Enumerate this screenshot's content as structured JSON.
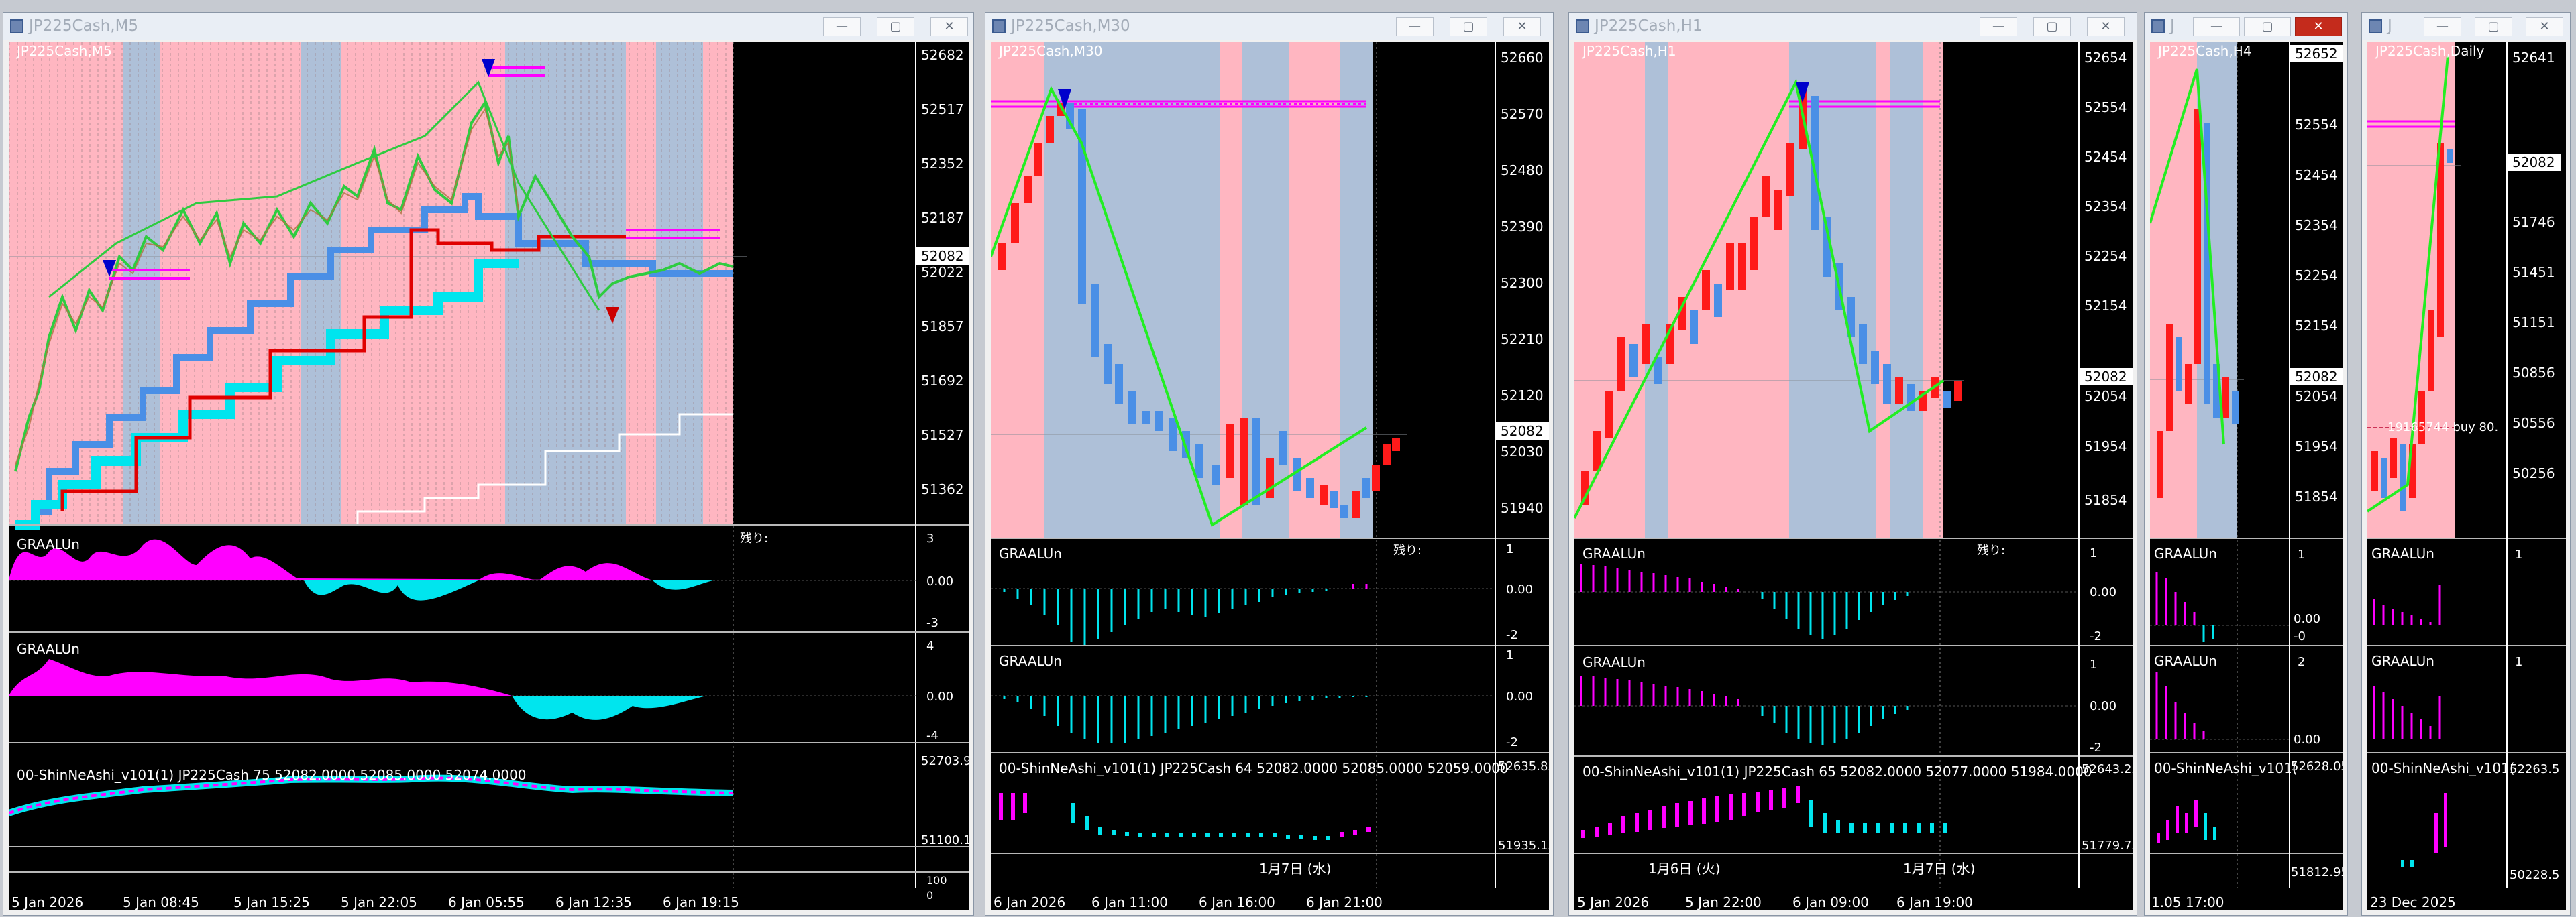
{
  "colors": {
    "bull": "#ff1a1a",
    "bear": "#4a8fe6",
    "pink": "#ffb6c1",
    "blue": "#aec0d8",
    "magenta": "#ff00ff",
    "cyan": "#00e5ee",
    "zigzag": "#22ee22"
  },
  "icons": {
    "window": "chart-window-icon",
    "min": "minimize-icon",
    "max": "maximize-icon",
    "close": "close-icon"
  },
  "windows": [
    {
      "title": "JP225Cash,M5",
      "label": "JP225Cash,M5",
      "price_ticks": [
        "52682",
        "52517",
        "52352",
        "52187",
        "52022",
        "51857",
        "51692",
        "51527",
        "51362"
      ],
      "current_price": "52082",
      "zan": "残り:",
      "ind1": {
        "name": "GRAALUn",
        "ticks": [
          "3",
          "0.00",
          "-3"
        ]
      },
      "ind2": {
        "name": "GRAALUn",
        "ticks": [
          "4",
          "0.00",
          "-4"
        ]
      },
      "ind3": {
        "name": "00-ShinNeAshi_v101(1) JP225Cash 75 52082.0000 52085.0000 52074.0000",
        "ticks": [
          "52703.9",
          "51100.1"
        ]
      },
      "extra_ticks": [
        "100",
        "0"
      ],
      "time_labels": [
        "5 Jan 2026",
        "5 Jan 08:45",
        "5 Jan 15:25",
        "5 Jan 22:05",
        "6 Jan 05:55",
        "6 Jan 12:35",
        "6 Jan 19:15"
      ]
    },
    {
      "title": "JP225Cash,M30",
      "label": "JP225Cash,M30",
      "price_ticks": [
        "52660",
        "52570",
        "52480",
        "52390",
        "52300",
        "52210",
        "52120",
        "52030",
        "51940"
      ],
      "current_price": "52082",
      "zan": "残り:",
      "ind1": {
        "name": "GRAALUn",
        "ticks": [
          "1",
          "0.00",
          "-2"
        ]
      },
      "ind2": {
        "name": "GRAALUn",
        "ticks": [
          "1",
          "0.00",
          "-2"
        ]
      },
      "ind3": {
        "name": "00-ShinNeAshi_v101(1) JP225Cash 64 52082.0000 52085.0000 52059.0000",
        "ticks": [
          "52635.85",
          "51935.15"
        ]
      },
      "date_mark": "1月7日 (水)",
      "time_labels": [
        "6 Jan 2026",
        "6 Jan 11:00",
        "6 Jan 16:00",
        "6 Jan 21:00"
      ]
    },
    {
      "title": "JP225Cash,H1",
      "label": "JP225Cash,H1",
      "price_ticks": [
        "52654",
        "52554",
        "52454",
        "52354",
        "52254",
        "52154",
        "52054",
        "51954",
        "51854"
      ],
      "current_price": "52082",
      "zan": "残り:",
      "ind1": {
        "name": "GRAALUn",
        "ticks": [
          "1",
          "0.00",
          "-2"
        ]
      },
      "ind2": {
        "name": "GRAALUn",
        "ticks": [
          "1",
          "0.00",
          "-2"
        ]
      },
      "ind3": {
        "name": "00-ShinNeAshi_v101(1) JP225Cash 65 52082.0000 52077.0000 51984.0000",
        "ticks": [
          "52643.25",
          "51779.75"
        ]
      },
      "date_mark1": "1月6日 (火)",
      "date_mark2": "1月7日 (水)",
      "time_labels": [
        "5 Jan 2026",
        "5 Jan 22:00",
        "6 Jan 09:00",
        "6 Jan 19:00"
      ]
    },
    {
      "title": "J",
      "label": "JP225Cash,H4",
      "price_ticks": [
        "52652",
        "52554",
        "52454",
        "52354",
        "52254",
        "52154",
        "52054",
        "51954",
        "51854"
      ],
      "current_price": "52082",
      "ind1": {
        "name": "GRAALUn",
        "ticks": [
          "1",
          "0.00",
          "-0"
        ]
      },
      "ind2": {
        "name": "GRAALUn",
        "ticks": [
          "2",
          "0.00"
        ]
      },
      "ind3": {
        "name": "00-ShinNeAshi_v101(",
        "ticks": [
          "52628.05",
          "51812.95"
        ]
      },
      "time_labels": [
        "1.05 17:00"
      ]
    },
    {
      "title": "J",
      "label": "JP225Cash,Daily",
      "price_ticks": [
        "52641",
        "52082",
        "51746",
        "51451",
        "51151",
        "50856",
        "50556",
        "50256"
      ],
      "current_price": "52082",
      "order_label": "19165744 buy 80.",
      "ind1": {
        "name": "GRAALUn",
        "ticks": [
          "1"
        ]
      },
      "ind2": {
        "name": "GRAALUn",
        "ticks": [
          "1"
        ]
      },
      "ind3": {
        "name": "00-ShinNeAshi_v101(",
        "ticks": [
          "52263.5",
          "50228.5"
        ]
      },
      "time_labels": [
        "23 Dec 2025"
      ]
    }
  ]
}
